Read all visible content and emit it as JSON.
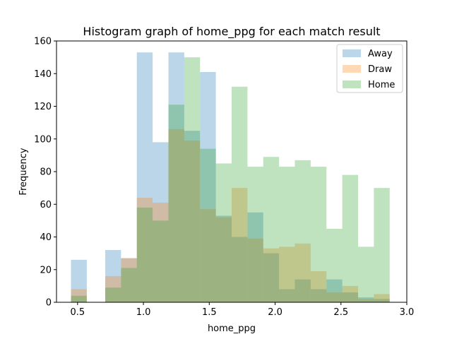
{
  "chart_data": {
    "type": "histogram",
    "title": "Histogram graph of home_ppg for each match result",
    "xlabel": "home_ppg",
    "ylabel": "Frequency",
    "xlim": [
      0.34,
      3.0
    ],
    "ylim": [
      0,
      160
    ],
    "xticks": [
      "0.5",
      "1.0",
      "1.5",
      "2.0",
      "2.5",
      "3.0"
    ],
    "yticks": [
      "0",
      "20",
      "40",
      "60",
      "80",
      "100",
      "120",
      "140",
      "160"
    ],
    "legend_position": "top-right",
    "series": [
      {
        "name": "Away",
        "color": "#1f77b4",
        "opacity": 0.3,
        "bins": [
          {
            "x0": 0.45,
            "x1": 0.57,
            "value": 26
          },
          {
            "x0": 0.71,
            "x1": 0.83,
            "value": 32
          },
          {
            "x0": 0.83,
            "x1": 0.95,
            "value": 27
          },
          {
            "x0": 0.95,
            "x1": 1.07,
            "value": 153
          },
          {
            "x0": 1.07,
            "x1": 1.19,
            "value": 98
          },
          {
            "x0": 1.19,
            "x1": 1.31,
            "value": 153
          },
          {
            "x0": 1.31,
            "x1": 1.43,
            "value": 105
          },
          {
            "x0": 1.43,
            "x1": 1.55,
            "value": 141
          },
          {
            "x0": 1.55,
            "x1": 1.67,
            "value": 53
          },
          {
            "x0": 1.67,
            "x1": 1.79,
            "value": 40
          },
          {
            "x0": 1.79,
            "x1": 1.91,
            "value": 55
          },
          {
            "x0": 1.91,
            "x1": 2.03,
            "value": 30
          },
          {
            "x0": 2.03,
            "x1": 2.15,
            "value": 8
          },
          {
            "x0": 2.15,
            "x1": 2.27,
            "value": 14
          },
          {
            "x0": 2.27,
            "x1": 2.39,
            "value": 8
          },
          {
            "x0": 2.39,
            "x1": 2.51,
            "value": 14
          },
          {
            "x0": 2.51,
            "x1": 2.63,
            "value": 6
          },
          {
            "x0": 2.63,
            "x1": 2.75,
            "value": 3
          },
          {
            "x0": 2.75,
            "x1": 2.87,
            "value": 2
          }
        ]
      },
      {
        "name": "Draw",
        "color": "#ff7f0e",
        "opacity": 0.3,
        "bins": [
          {
            "x0": 0.45,
            "x1": 0.57,
            "value": 8
          },
          {
            "x0": 0.71,
            "x1": 0.83,
            "value": 16
          },
          {
            "x0": 0.83,
            "x1": 0.95,
            "value": 27
          },
          {
            "x0": 0.95,
            "x1": 1.07,
            "value": 64
          },
          {
            "x0": 1.07,
            "x1": 1.19,
            "value": 61
          },
          {
            "x0": 1.19,
            "x1": 1.31,
            "value": 106
          },
          {
            "x0": 1.31,
            "x1": 1.43,
            "value": 99
          },
          {
            "x0": 1.43,
            "x1": 1.55,
            "value": 57
          },
          {
            "x0": 1.55,
            "x1": 1.67,
            "value": 52
          },
          {
            "x0": 1.67,
            "x1": 1.79,
            "value": 70
          },
          {
            "x0": 1.79,
            "x1": 1.91,
            "value": 39
          },
          {
            "x0": 1.91,
            "x1": 2.03,
            "value": 33
          },
          {
            "x0": 2.03,
            "x1": 2.15,
            "value": 34
          },
          {
            "x0": 2.15,
            "x1": 2.27,
            "value": 36
          },
          {
            "x0": 2.27,
            "x1": 2.39,
            "value": 19
          },
          {
            "x0": 2.39,
            "x1": 2.51,
            "value": 6
          },
          {
            "x0": 2.51,
            "x1": 2.63,
            "value": 10
          },
          {
            "x0": 2.63,
            "x1": 2.75,
            "value": 2
          },
          {
            "x0": 2.75,
            "x1": 2.87,
            "value": 5
          }
        ]
      },
      {
        "name": "Home",
        "color": "#2ca02c",
        "opacity": 0.3,
        "bins": [
          {
            "x0": 0.45,
            "x1": 0.57,
            "value": 4
          },
          {
            "x0": 0.71,
            "x1": 0.83,
            "value": 9
          },
          {
            "x0": 0.83,
            "x1": 0.95,
            "value": 21
          },
          {
            "x0": 0.95,
            "x1": 1.07,
            "value": 58
          },
          {
            "x0": 1.07,
            "x1": 1.19,
            "value": 50
          },
          {
            "x0": 1.19,
            "x1": 1.31,
            "value": 121
          },
          {
            "x0": 1.31,
            "x1": 1.43,
            "value": 150
          },
          {
            "x0": 1.43,
            "x1": 1.55,
            "value": 94
          },
          {
            "x0": 1.55,
            "x1": 1.67,
            "value": 85
          },
          {
            "x0": 1.67,
            "x1": 1.79,
            "value": 132
          },
          {
            "x0": 1.79,
            "x1": 1.91,
            "value": 83
          },
          {
            "x0": 1.91,
            "x1": 2.03,
            "value": 89
          },
          {
            "x0": 2.03,
            "x1": 2.15,
            "value": 83
          },
          {
            "x0": 2.15,
            "x1": 2.27,
            "value": 87
          },
          {
            "x0": 2.27,
            "x1": 2.39,
            "value": 83
          },
          {
            "x0": 2.39,
            "x1": 2.51,
            "value": 45
          },
          {
            "x0": 2.51,
            "x1": 2.63,
            "value": 78
          },
          {
            "x0": 2.63,
            "x1": 2.75,
            "value": 34
          },
          {
            "x0": 2.75,
            "x1": 2.87,
            "value": 70
          }
        ]
      }
    ]
  }
}
